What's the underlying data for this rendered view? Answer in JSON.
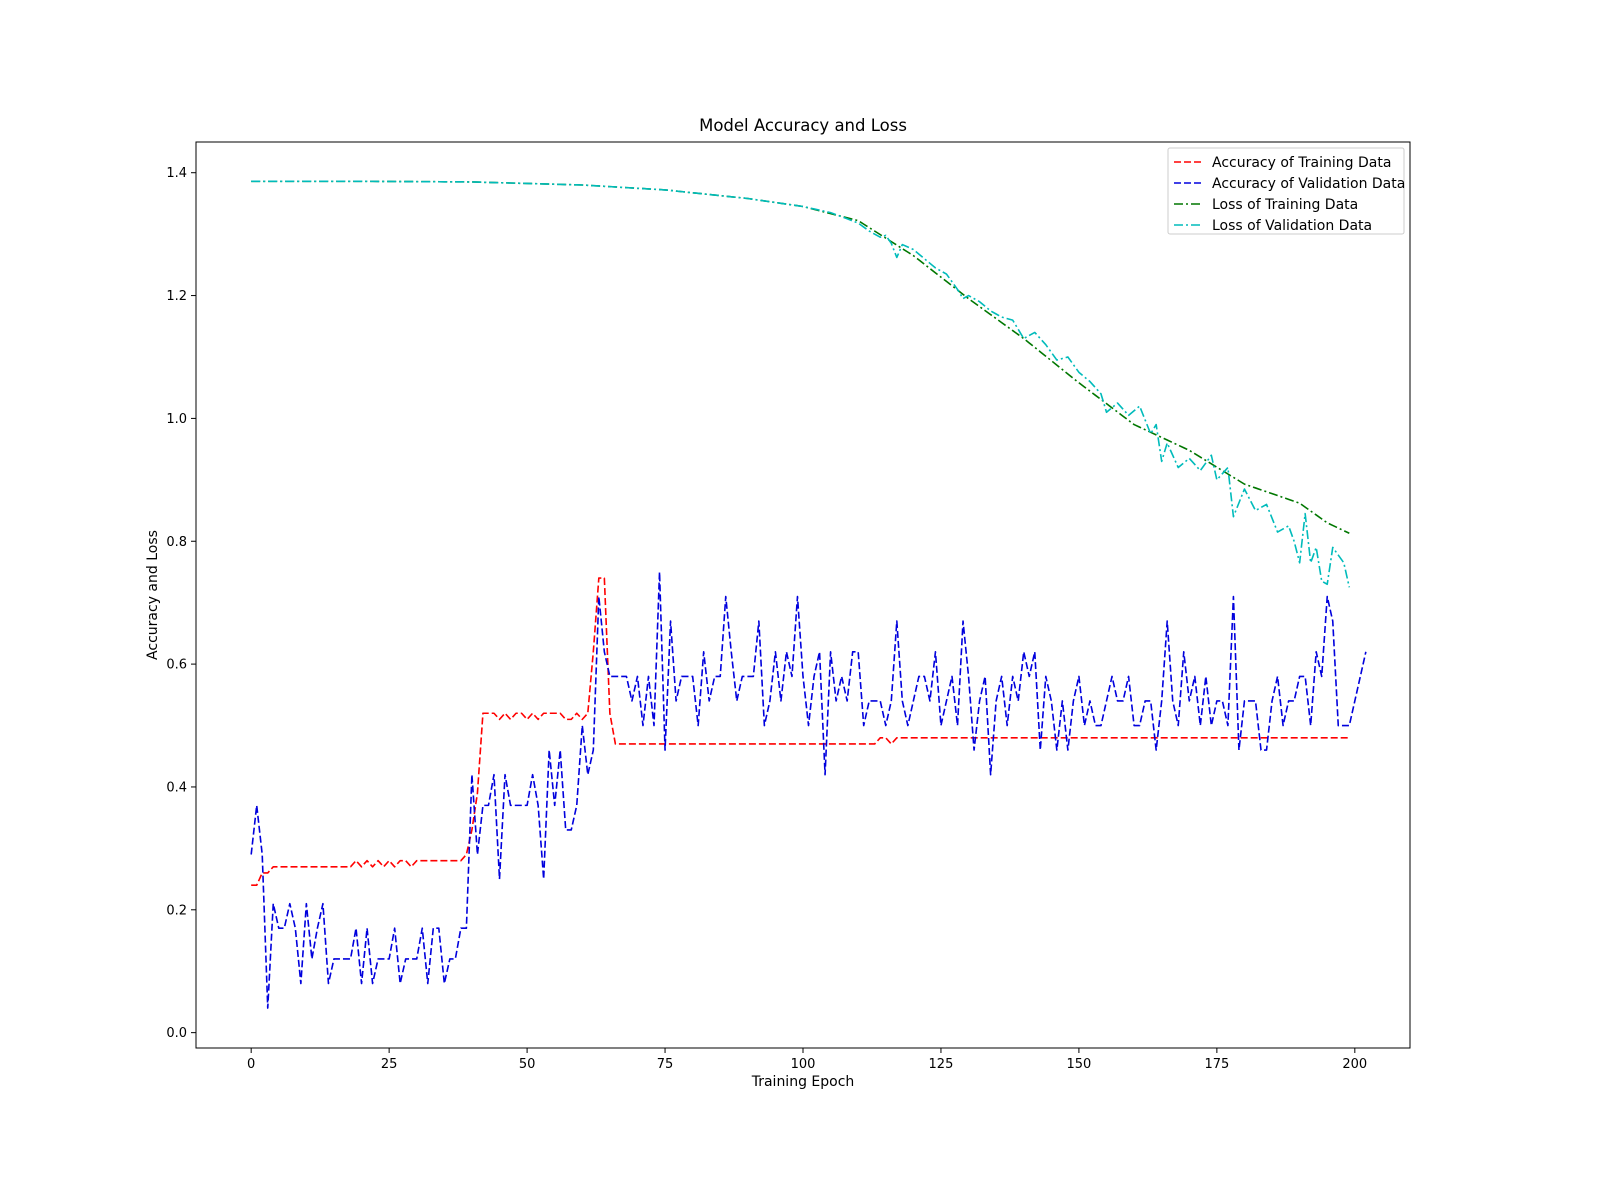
{
  "chart_data": {
    "type": "line",
    "title": "Model Accuracy and Loss",
    "xlabel": "Training Epoch",
    "ylabel": "Accuracy and Loss",
    "xlim": [
      -10,
      210
    ],
    "ylim": [
      -0.025,
      1.45
    ],
    "xticks": [
      0,
      25,
      50,
      75,
      100,
      125,
      150,
      175,
      200
    ],
    "yticks": [
      0.0,
      0.2,
      0.4,
      0.6,
      0.8,
      1.0,
      1.2,
      1.4
    ],
    "grid": false,
    "legend_position": "top-right",
    "series": [
      {
        "name": "Accuracy of Training Data",
        "color": "#ff0000",
        "dash": "dashed",
        "keypoints": [
          [
            0,
            0.24
          ],
          [
            1,
            0.24
          ],
          [
            2,
            0.26
          ],
          [
            3,
            0.26
          ],
          [
            4,
            0.27
          ],
          [
            18,
            0.27
          ],
          [
            19,
            0.28
          ],
          [
            20,
            0.27
          ],
          [
            21,
            0.28
          ],
          [
            22,
            0.27
          ],
          [
            23,
            0.28
          ],
          [
            24,
            0.27
          ],
          [
            25,
            0.28
          ],
          [
            26,
            0.27
          ],
          [
            27,
            0.28
          ],
          [
            28,
            0.28
          ],
          [
            29,
            0.27
          ],
          [
            30,
            0.28
          ],
          [
            38,
            0.28
          ],
          [
            39,
            0.29
          ],
          [
            40,
            0.33
          ],
          [
            41,
            0.39
          ],
          [
            42,
            0.52
          ],
          [
            44,
            0.52
          ],
          [
            45,
            0.51
          ],
          [
            46,
            0.52
          ],
          [
            47,
            0.51
          ],
          [
            48,
            0.52
          ],
          [
            49,
            0.52
          ],
          [
            50,
            0.51
          ],
          [
            51,
            0.52
          ],
          [
            52,
            0.51
          ],
          [
            53,
            0.52
          ],
          [
            56,
            0.52
          ],
          [
            57,
            0.51
          ],
          [
            58,
            0.51
          ],
          [
            59,
            0.52
          ],
          [
            60,
            0.51
          ],
          [
            61,
            0.52
          ],
          [
            62,
            0.62
          ],
          [
            63,
            0.74
          ],
          [
            64,
            0.74
          ],
          [
            65,
            0.52
          ],
          [
            66,
            0.47
          ],
          [
            113,
            0.47
          ],
          [
            114,
            0.48
          ],
          [
            115,
            0.48
          ],
          [
            116,
            0.47
          ],
          [
            117,
            0.48
          ],
          [
            199,
            0.48
          ]
        ]
      },
      {
        "name": "Accuracy of Validation Data",
        "color": "#0000dd",
        "dash": "dashed",
        "values": [
          0.29,
          0.37,
          0.29,
          0.04,
          0.21,
          0.17,
          0.17,
          0.21,
          0.17,
          0.08,
          0.21,
          0.12,
          0.17,
          0.21,
          0.08,
          0.12,
          0.12,
          0.12,
          0.12,
          0.17,
          0.08,
          0.17,
          0.08,
          0.12,
          0.12,
          0.12,
          0.17,
          0.08,
          0.12,
          0.12,
          0.12,
          0.17,
          0.08,
          0.17,
          0.17,
          0.08,
          0.12,
          0.12,
          0.17,
          0.17,
          0.42,
          0.29,
          0.37,
          0.37,
          0.42,
          0.25,
          0.42,
          0.37,
          0.37,
          0.37,
          0.37,
          0.42,
          0.37,
          0.25,
          0.46,
          0.37,
          0.46,
          0.33,
          0.33,
          0.37,
          0.5,
          0.42,
          0.46,
          0.71,
          0.62,
          0.58,
          0.58,
          0.58,
          0.58,
          0.54,
          0.58,
          0.5,
          0.58,
          0.5,
          0.75,
          0.46,
          0.67,
          0.54,
          0.58,
          0.58,
          0.58,
          0.5,
          0.62,
          0.54,
          0.58,
          0.58,
          0.71,
          0.62,
          0.54,
          0.58,
          0.58,
          0.58,
          0.67,
          0.5,
          0.54,
          0.62,
          0.54,
          0.62,
          0.58,
          0.71,
          0.58,
          0.5,
          0.58,
          0.62,
          0.42,
          0.62,
          0.54,
          0.58,
          0.54,
          0.62,
          0.62,
          0.5,
          0.54,
          0.54,
          0.54,
          0.5,
          0.54,
          0.67,
          0.54,
          0.5,
          0.54,
          0.58,
          0.58,
          0.54,
          0.62,
          0.5,
          0.54,
          0.58,
          0.5,
          0.67,
          0.58,
          0.46,
          0.54,
          0.58,
          0.42,
          0.54,
          0.58,
          0.5,
          0.58,
          0.54,
          0.62,
          0.58,
          0.62,
          0.46,
          0.58,
          0.54,
          0.46,
          0.54,
          0.46,
          0.54,
          0.58,
          0.5,
          0.54,
          0.5,
          0.5,
          0.54,
          0.58,
          0.54,
          0.54,
          0.58,
          0.5,
          0.5,
          0.54,
          0.54,
          0.46,
          0.54,
          0.67,
          0.54,
          0.5,
          0.62,
          0.54,
          0.58,
          0.5,
          0.58,
          0.5,
          0.54,
          0.54,
          0.5,
          0.71,
          0.46,
          0.54,
          0.54,
          0.54,
          0.46,
          0.46,
          0.54,
          0.58,
          0.5,
          0.54,
          0.54,
          0.58,
          0.58,
          0.5,
          0.62,
          0.58,
          0.71,
          0.67,
          0.5,
          0.5,
          0.5,
          0.54,
          0.58,
          0.62
        ]
      },
      {
        "name": "Loss of Training Data",
        "color": "#007700",
        "dash": "dashdot",
        "keypoints": [
          [
            0,
            1.386
          ],
          [
            20,
            1.386
          ],
          [
            40,
            1.385
          ],
          [
            60,
            1.38
          ],
          [
            75,
            1.372
          ],
          [
            90,
            1.358
          ],
          [
            100,
            1.345
          ],
          [
            110,
            1.322
          ],
          [
            120,
            1.265
          ],
          [
            130,
            1.195
          ],
          [
            140,
            1.13
          ],
          [
            150,
            1.058
          ],
          [
            160,
            0.99
          ],
          [
            170,
            0.948
          ],
          [
            180,
            0.893
          ],
          [
            190,
            0.862
          ],
          [
            195,
            0.83
          ],
          [
            199,
            0.813
          ]
        ]
      },
      {
        "name": "Loss of Validation Data",
        "color": "#00bbbb",
        "dash": "dashdot",
        "keypoints": [
          [
            0,
            1.386
          ],
          [
            20,
            1.386
          ],
          [
            40,
            1.385
          ],
          [
            60,
            1.38
          ],
          [
            75,
            1.372
          ],
          [
            90,
            1.358
          ],
          [
            100,
            1.345
          ],
          [
            105,
            1.335
          ],
          [
            108,
            1.325
          ],
          [
            110,
            1.318
          ],
          [
            112,
            1.305
          ],
          [
            114,
            1.295
          ],
          [
            115,
            1.298
          ],
          [
            116,
            1.285
          ],
          [
            117,
            1.262
          ],
          [
            118,
            1.283
          ],
          [
            120,
            1.275
          ],
          [
            122,
            1.26
          ],
          [
            124,
            1.245
          ],
          [
            126,
            1.235
          ],
          [
            128,
            1.21
          ],
          [
            129,
            1.195
          ],
          [
            130,
            1.2
          ],
          [
            132,
            1.19
          ],
          [
            134,
            1.175
          ],
          [
            136,
            1.165
          ],
          [
            138,
            1.16
          ],
          [
            140,
            1.13
          ],
          [
            142,
            1.14
          ],
          [
            144,
            1.12
          ],
          [
            146,
            1.095
          ],
          [
            148,
            1.1
          ],
          [
            150,
            1.075
          ],
          [
            152,
            1.06
          ],
          [
            154,
            1.04
          ],
          [
            155,
            1.01
          ],
          [
            157,
            1.025
          ],
          [
            159,
            1.005
          ],
          [
            161,
            1.02
          ],
          [
            163,
            0.975
          ],
          [
            164,
            0.99
          ],
          [
            165,
            0.93
          ],
          [
            166,
            0.96
          ],
          [
            168,
            0.92
          ],
          [
            170,
            0.935
          ],
          [
            172,
            0.915
          ],
          [
            174,
            0.94
          ],
          [
            175,
            0.9
          ],
          [
            177,
            0.92
          ],
          [
            178,
            0.84
          ],
          [
            180,
            0.885
          ],
          [
            182,
            0.85
          ],
          [
            184,
            0.86
          ],
          [
            186,
            0.815
          ],
          [
            188,
            0.825
          ],
          [
            189,
            0.8
          ],
          [
            190,
            0.765
          ],
          [
            191,
            0.845
          ],
          [
            192,
            0.765
          ],
          [
            193,
            0.79
          ],
          [
            194,
            0.735
          ],
          [
            195,
            0.73
          ],
          [
            196,
            0.79
          ],
          [
            198,
            0.765
          ],
          [
            199,
            0.725
          ]
        ]
      }
    ]
  }
}
